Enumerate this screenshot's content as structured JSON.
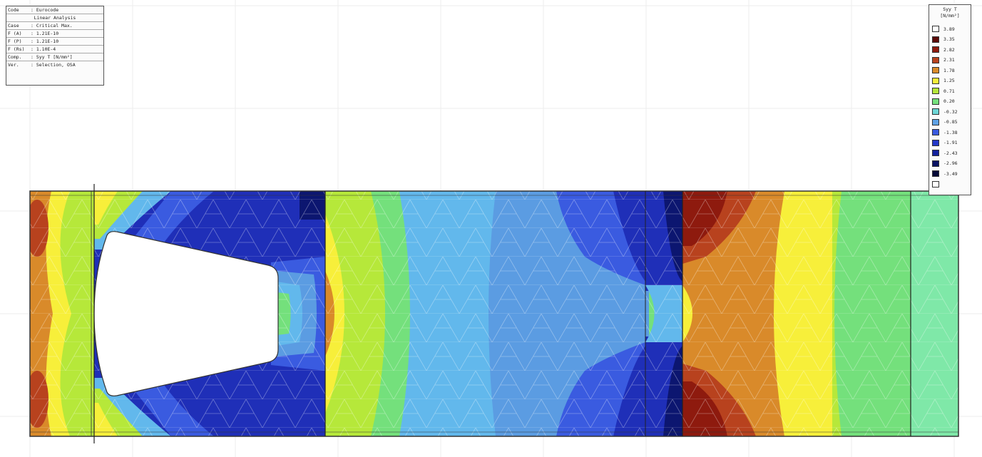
{
  "info_panel": {
    "rows": [
      {
        "key": "Code",
        "value": ": Eurocode"
      },
      {
        "key": "",
        "value": "Linear Analysis"
      },
      {
        "key": "Case",
        "value": ": Critical Max."
      },
      {
        "key": "F (A)",
        "value": ": 1.21E-10"
      },
      {
        "key": "F (P)",
        "value": ": 1.21E-10"
      },
      {
        "key": "F (Rs)",
        "value": ": 1.10E-4"
      },
      {
        "key": "Comp.",
        "value": ": Syy T [N/mm²]"
      },
      {
        "key": "Ver.",
        "value": ": Selection, OSA"
      }
    ]
  },
  "legend": {
    "title_line1": "Syy T",
    "title_line2": "[N/mm²]",
    "items": [
      {
        "label": "3.89",
        "color": "#ffffff"
      },
      {
        "label": "3.35",
        "color": "#5c0a08"
      },
      {
        "label": "2.82",
        "color": "#8e1a0e"
      },
      {
        "label": "2.31",
        "color": "#b8421e"
      },
      {
        "label": "1.78",
        "color": "#d98a2a"
      },
      {
        "label": "1.25",
        "color": "#f7ef3a"
      },
      {
        "label": "0.71",
        "color": "#b6e83a"
      },
      {
        "label": "0.20",
        "color": "#74e07c"
      },
      {
        "label": "-0.32",
        "color": "#6cd6d6"
      },
      {
        "label": "-0.85",
        "color": "#5fa2e6"
      },
      {
        "label": "-1.38",
        "color": "#3a5be0"
      },
      {
        "label": "-1.91",
        "color": "#2438c8"
      },
      {
        "label": "-2.43",
        "color": "#13229e"
      },
      {
        "label": "-2.96",
        "color": "#0a1264"
      },
      {
        "label": "-3.49",
        "color": "#050a38"
      },
      {
        "label": "",
        "color": "#ffffff"
      }
    ]
  },
  "colors": {
    "orange": "#d98a2a",
    "yellow": "#f7ef3a",
    "lime": "#b6e83a",
    "green": "#74e07c",
    "cyan": "#6cd6d6",
    "light_blue": "#62b8ec",
    "mid_blue": "#5b9ce2",
    "blue": "#3a5be0",
    "deep_blue": "#1f2fb8",
    "navy": "#0c1670",
    "dark_red": "#8e1a0e",
    "red": "#b8421e"
  }
}
